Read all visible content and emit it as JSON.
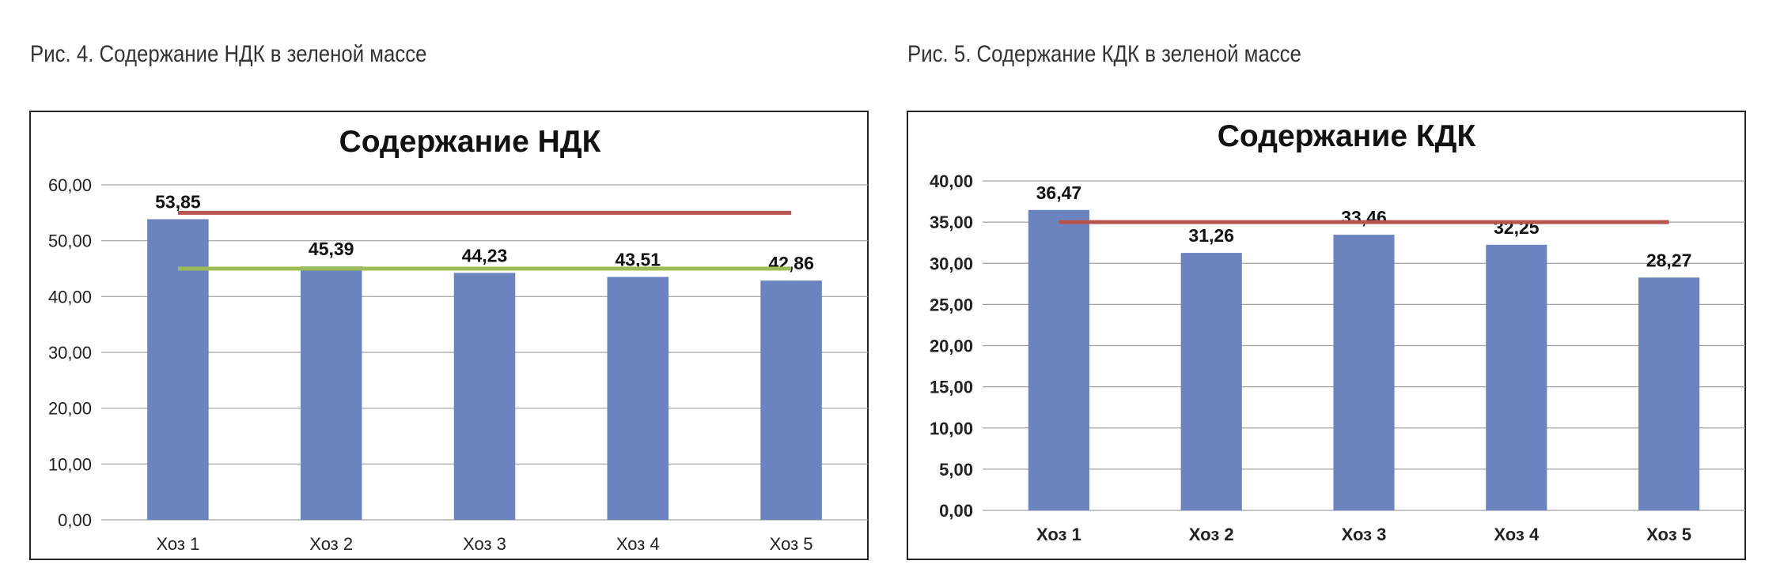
{
  "captions": {
    "left": "Рис. 4. Содержание НДК в зеленой массе",
    "right": "Рис. 5. Содержание КДК в зеленой массе"
  },
  "chart_data": [
    {
      "type": "bar",
      "title": "Содержание НДК",
      "categories": [
        "Хоз 1",
        "Хоз 2",
        "Хоз 3",
        "Хоз 4",
        "Хоз 5"
      ],
      "values": [
        53.85,
        45.39,
        44.23,
        43.51,
        42.86
      ],
      "value_labels": [
        "53,85",
        "45,39",
        "44,23",
        "43,51",
        "42,86"
      ],
      "ylim": [
        0,
        60
      ],
      "yticks": [
        0,
        10,
        20,
        30,
        40,
        50,
        60
      ],
      "ytick_labels": [
        "0,00",
        "10,00",
        "20,00",
        "30,00",
        "40,00",
        "50,00",
        "60,00"
      ],
      "grid": true,
      "reference_lines": [
        {
          "value": 55,
          "color": "#b85450"
        },
        {
          "value": 45,
          "color": "#9bbb59"
        }
      ],
      "colors": {
        "bar": "#6b84bf"
      }
    },
    {
      "type": "bar",
      "title": "Содержание КДК",
      "categories": [
        "Хоз 1",
        "Хоз 2",
        "Хоз 3",
        "Хоз 4",
        "Хоз 5"
      ],
      "values": [
        36.47,
        31.26,
        33.46,
        32.25,
        28.27
      ],
      "value_labels": [
        "36,47",
        "31,26",
        "33,46",
        "32,25",
        "28,27"
      ],
      "ylim": [
        0,
        40
      ],
      "yticks": [
        0,
        5,
        10,
        15,
        20,
        25,
        30,
        35,
        40
      ],
      "ytick_labels": [
        "0,00",
        "5,00",
        "10,00",
        "15,00",
        "20,00",
        "25,00",
        "30,00",
        "35,00",
        "40,00"
      ],
      "grid": true,
      "reference_lines": [
        {
          "value": 35,
          "color": "#b85450"
        }
      ],
      "colors": {
        "bar": "#6b84bf"
      }
    }
  ]
}
